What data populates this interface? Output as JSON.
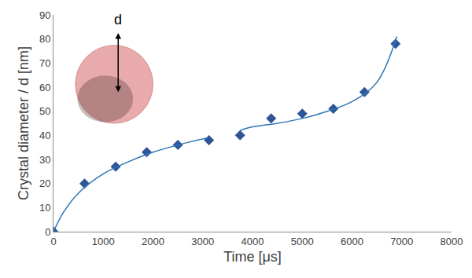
{
  "chart_data": {
    "type": "scatter",
    "x_label": "Time [μs]",
    "y_label": "Crystal diameter / d [nm]",
    "xlim": [
      0,
      8000
    ],
    "xticks": [
      0,
      1000,
      2000,
      3000,
      4000,
      5000,
      6000,
      7000,
      8000
    ],
    "ylim": [
      0,
      90
    ],
    "yticks": [
      0,
      10,
      20,
      30,
      40,
      50,
      60,
      70,
      80,
      90
    ],
    "grid": false,
    "series": [
      {
        "type": "scatter",
        "marker": "diamond",
        "color": "#2f5597",
        "x": [
          0,
          625,
          1250,
          1875,
          2500,
          3125,
          3750,
          4375,
          5000,
          5625,
          6250,
          6875
        ],
        "values": [
          0,
          20,
          27,
          33,
          36,
          38,
          40,
          47,
          49,
          51,
          58,
          78
        ]
      },
      {
        "type": "line",
        "line_style": "solid",
        "color": "#2e75b6",
        "x": [
          0,
          200,
          500,
          1000,
          1500,
          2000,
          2500,
          3100
        ],
        "values": [
          0,
          8,
          16,
          24,
          29,
          33,
          36,
          39
        ]
      },
      {
        "type": "line",
        "line_style": "solid",
        "color": "#2e75b6",
        "x": [
          3750,
          4000,
          4500,
          5000,
          5500,
          6000,
          6500,
          6900
        ],
        "values": [
          42,
          43.5,
          45,
          47,
          50,
          54,
          62,
          81
        ]
      }
    ],
    "annotations": [
      {
        "text": "d",
        "x": 1300,
        "y": 84
      }
    ]
  }
}
